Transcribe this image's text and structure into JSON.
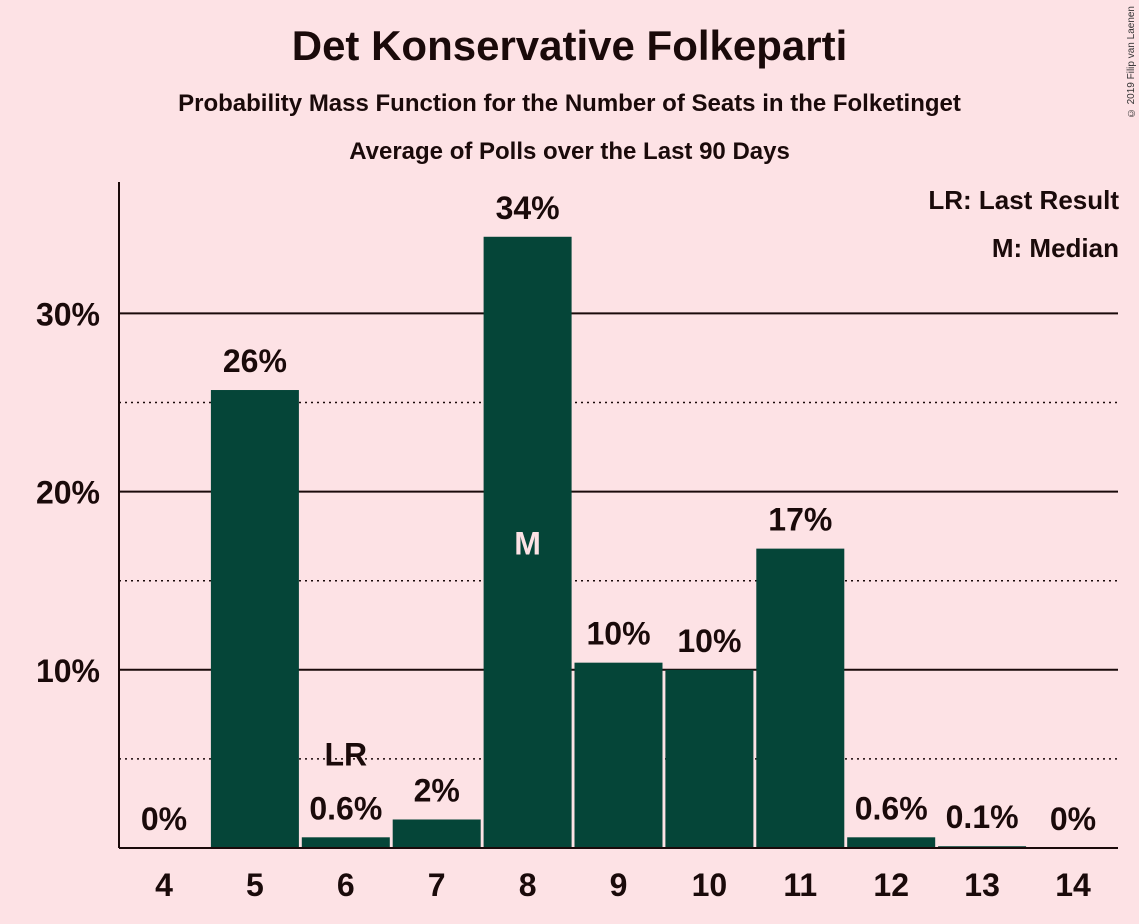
{
  "title": "Det Konservative Folkeparti",
  "subtitle1": "Probability Mass Function for the Number of Seats in the Folketinget",
  "subtitle2": "Average of Polls over the Last 90 Days",
  "copyright": "© 2019 Filip van Laenen",
  "legend": {
    "lr": "LR: Last Result",
    "m": "M: Median"
  },
  "colors": {
    "bar": "#054538",
    "background": "#FDE2E5",
    "text": "#1a0a0a"
  },
  "chart_data": {
    "type": "bar",
    "title": "Det Konservative Folkeparti",
    "xlabel": "",
    "ylabel": "",
    "categories": [
      "4",
      "5",
      "6",
      "7",
      "8",
      "9",
      "10",
      "11",
      "12",
      "13",
      "14"
    ],
    "values": [
      0,
      25.7,
      0.6,
      1.6,
      34.3,
      10.4,
      10.0,
      16.8,
      0.6,
      0.1,
      0
    ],
    "data_labels": [
      "0%",
      "26%",
      "0.6%",
      "2%",
      "34%",
      "10%",
      "10%",
      "17%",
      "0.6%",
      "0.1%",
      "0%"
    ],
    "ylim": [
      0,
      37.3
    ],
    "yticks": [
      10,
      20,
      30
    ],
    "ytick_labels": [
      "10%",
      "20%",
      "30%"
    ],
    "minor_gridlines": [
      5,
      15,
      25
    ],
    "last_result": "6",
    "last_result_label": "LR",
    "median": "8",
    "median_label": "M",
    "grid": true,
    "legend_position": "top-right"
  }
}
